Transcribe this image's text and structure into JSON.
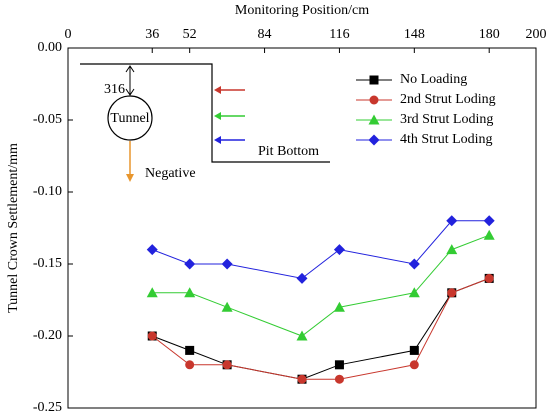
{
  "chart_data": {
    "type": "line",
    "xlabel": "Monitoring Position/cm",
    "ylabel": "Tunnel Crown Settlement/mm",
    "x": [
      36,
      52,
      68,
      100,
      116,
      148,
      164,
      180
    ],
    "xlim": [
      0,
      200
    ],
    "xticks": [
      0,
      36,
      52,
      84,
      116,
      148,
      180,
      200
    ],
    "ylim": [
      -0.25,
      0
    ],
    "yticks": [
      {
        "value": 0,
        "label": "0.00"
      },
      -0.05,
      {
        "value": -0.1,
        "label": "-0.10"
      },
      -0.15,
      {
        "value": -0.2,
        "label": "-0.20"
      },
      -0.25
    ],
    "legend": "upper right",
    "series": [
      {
        "name": "No Loading",
        "color": "#000000",
        "marker": "square",
        "values": [
          -0.2,
          -0.21,
          -0.22,
          -0.23,
          -0.22,
          -0.21,
          -0.17,
          -0.16
        ]
      },
      {
        "name": "2nd Strut Loding",
        "color": "#c8372d",
        "marker": "circle",
        "values": [
          -0.2,
          -0.22,
          -0.22,
          -0.23,
          -0.23,
          -0.22,
          -0.17,
          -0.16
        ]
      },
      {
        "name": "3rd Strut Loding",
        "color": "#33cc33",
        "marker": "triangle",
        "values": [
          -0.17,
          -0.17,
          -0.18,
          -0.2,
          -0.18,
          -0.17,
          -0.14,
          -0.13
        ]
      },
      {
        "name": "4th Strut Loding",
        "color": "#2222dd",
        "marker": "diamond",
        "values": [
          -0.14,
          -0.15,
          -0.15,
          -0.16,
          -0.14,
          -0.15,
          -0.12,
          -0.12
        ]
      }
    ],
    "annotations": {
      "depth": "316",
      "tunnel": "Tunnel",
      "direction": "Negative",
      "pit": "Pit Bottom"
    }
  }
}
